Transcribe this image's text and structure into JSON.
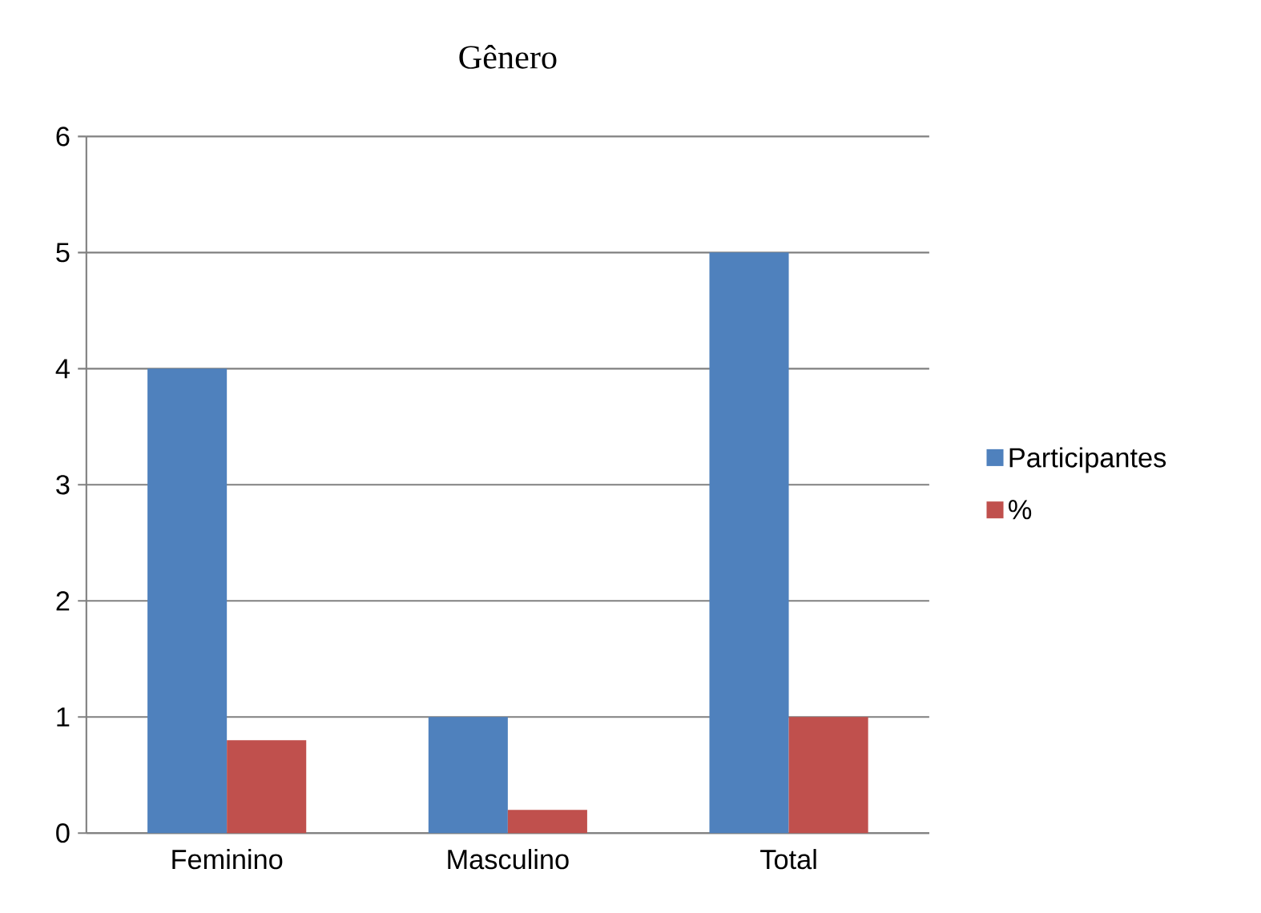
{
  "chart_data": {
    "type": "bar",
    "title": "Gênero",
    "categories": [
      "Feminino",
      "Masculino",
      "Total"
    ],
    "series": [
      {
        "name": "Participantes",
        "color": "#4f81bd",
        "values": [
          4,
          1,
          5
        ]
      },
      {
        "name": "%",
        "color": "#c0504d",
        "values": [
          0.8,
          0.2,
          1
        ]
      }
    ],
    "ylim": [
      0,
      6
    ],
    "yticks": [
      0,
      1,
      2,
      3,
      4,
      5,
      6
    ],
    "grid": "y",
    "legend": "right"
  }
}
